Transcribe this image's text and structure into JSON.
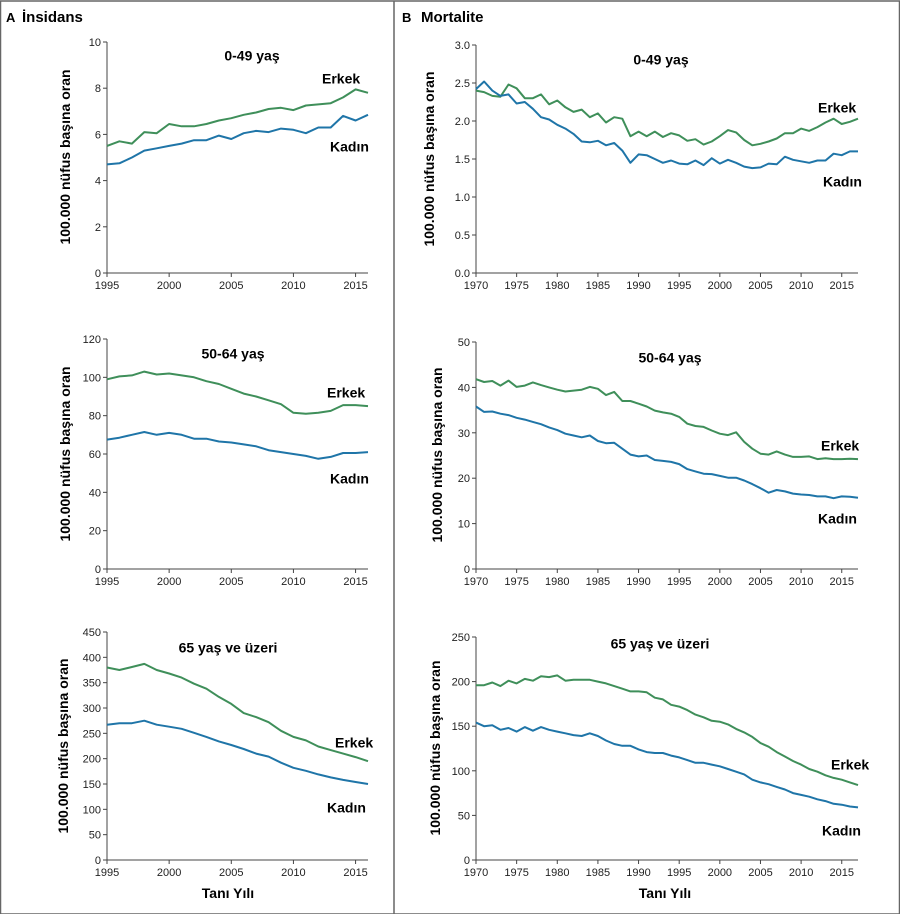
{
  "colors": {
    "erkek": "#3f8f5a",
    "kadin": "#1f75a8",
    "axis": "#444444",
    "frame": "#666666"
  },
  "panels": [
    {
      "letter": "A",
      "title": "İnsidans"
    },
    {
      "letter": "B",
      "title": "Mortalite"
    }
  ],
  "xlabel": "Tanı Yılı",
  "chart_data": [
    {
      "type": "line",
      "panel": "A",
      "title": "0-49 yaş",
      "ylabel": "100.000 nüfus başına oran",
      "xlim": [
        1995,
        2016
      ],
      "ylim": [
        0,
        10
      ],
      "xticks": [
        1995,
        2000,
        2005,
        2010,
        2015
      ],
      "yticks": [
        0,
        2,
        4,
        6,
        8,
        10
      ],
      "x": [
        1995,
        1996,
        1997,
        1998,
        1999,
        2000,
        2001,
        2002,
        2003,
        2004,
        2005,
        2006,
        2007,
        2008,
        2009,
        2010,
        2011,
        2012,
        2013,
        2014,
        2015,
        2016
      ],
      "series": [
        {
          "name": "Erkek",
          "values": [
            5.5,
            5.7,
            5.6,
            6.1,
            6.05,
            6.45,
            6.35,
            6.35,
            6.45,
            6.6,
            6.7,
            6.85,
            6.95,
            7.1,
            7.15,
            7.05,
            7.25,
            7.3,
            7.35,
            7.6,
            7.95,
            7.8
          ]
        },
        {
          "name": "Kadın",
          "values": [
            4.7,
            4.75,
            5.0,
            5.3,
            5.4,
            5.5,
            5.6,
            5.75,
            5.75,
            5.95,
            5.8,
            6.05,
            6.15,
            6.1,
            6.25,
            6.2,
            6.05,
            6.3,
            6.3,
            6.8,
            6.6,
            6.85
          ]
        }
      ]
    },
    {
      "type": "line",
      "panel": "A",
      "title": "50-64 yaş",
      "ylabel": "100.000 nüfus başına oran",
      "xlim": [
        1995,
        2016
      ],
      "ylim": [
        0,
        120
      ],
      "xticks": [
        1995,
        2000,
        2005,
        2010,
        2015
      ],
      "yticks": [
        0,
        20,
        40,
        60,
        80,
        100,
        120
      ],
      "x": [
        1995,
        1996,
        1997,
        1998,
        1999,
        2000,
        2001,
        2002,
        2003,
        2004,
        2005,
        2006,
        2007,
        2008,
        2009,
        2010,
        2011,
        2012,
        2013,
        2014,
        2015,
        2016
      ],
      "series": [
        {
          "name": "Erkek",
          "values": [
            99,
            100.5,
            101,
            103,
            101.5,
            102,
            101,
            100,
            98,
            96.5,
            94,
            91.5,
            90,
            88,
            86,
            81.5,
            81,
            81.5,
            82.5,
            85.5,
            85.5,
            85
          ]
        },
        {
          "name": "Kadın",
          "values": [
            67.5,
            68.5,
            70,
            71.5,
            70,
            71,
            70,
            68,
            68,
            66.5,
            66,
            65,
            64,
            62,
            61,
            60,
            59,
            57.5,
            58.5,
            60.5,
            60.5,
            61
          ]
        }
      ]
    },
    {
      "type": "line",
      "panel": "A",
      "title": "65 yaş ve üzeri",
      "ylabel": "100.000 nüfus başına oran",
      "xlim": [
        1995,
        2016
      ],
      "ylim": [
        0,
        450
      ],
      "xticks": [
        1995,
        2000,
        2005,
        2010,
        2015
      ],
      "yticks": [
        0,
        50,
        100,
        150,
        200,
        250,
        300,
        350,
        400,
        450
      ],
      "x": [
        1995,
        1996,
        1997,
        1998,
        1999,
        2000,
        2001,
        2002,
        2003,
        2004,
        2005,
        2006,
        2007,
        2008,
        2009,
        2010,
        2011,
        2012,
        2013,
        2014,
        2015,
        2016
      ],
      "series": [
        {
          "name": "Erkek",
          "values": [
            380,
            375,
            381,
            387,
            375,
            368,
            360,
            348,
            338,
            322,
            308,
            290,
            282,
            272,
            255,
            243,
            236,
            224,
            217,
            210,
            203,
            195
          ]
        },
        {
          "name": "Kadın",
          "values": [
            267,
            270,
            270,
            275,
            267,
            263,
            259,
            251,
            243,
            234,
            227,
            219,
            210,
            204,
            192,
            182,
            176,
            169,
            163,
            158,
            154,
            150
          ]
        }
      ]
    },
    {
      "type": "line",
      "panel": "B",
      "title": "0-49 yaş",
      "ylabel": "100.000 nüfus başına oran",
      "xlim": [
        1970,
        2017
      ],
      "ylim": [
        0,
        3.0
      ],
      "xticks": [
        1970,
        1975,
        1980,
        1985,
        1990,
        1995,
        2000,
        2005,
        2010,
        2015
      ],
      "yticks": [
        0.0,
        0.5,
        1.0,
        1.5,
        2.0,
        2.5,
        3.0
      ],
      "ytick_decimals": 1,
      "x": [
        1970,
        1971,
        1972,
        1973,
        1974,
        1975,
        1976,
        1977,
        1978,
        1979,
        1980,
        1981,
        1982,
        1983,
        1984,
        1985,
        1986,
        1987,
        1988,
        1989,
        1990,
        1991,
        1992,
        1993,
        1994,
        1995,
        1996,
        1997,
        1998,
        1999,
        2000,
        2001,
        2002,
        2003,
        2004,
        2005,
        2006,
        2007,
        2008,
        2009,
        2010,
        2011,
        2012,
        2013,
        2014,
        2015,
        2016,
        2017
      ],
      "series": [
        {
          "name": "Erkek",
          "values": [
            2.4,
            2.38,
            2.33,
            2.32,
            2.48,
            2.43,
            2.3,
            2.3,
            2.35,
            2.22,
            2.27,
            2.18,
            2.12,
            2.15,
            2.05,
            2.1,
            1.98,
            2.05,
            2.03,
            1.8,
            1.86,
            1.8,
            1.86,
            1.79,
            1.84,
            1.81,
            1.74,
            1.76,
            1.69,
            1.73,
            1.8,
            1.88,
            1.85,
            1.75,
            1.68,
            1.7,
            1.73,
            1.77,
            1.84,
            1.84,
            1.9,
            1.87,
            1.92,
            1.98,
            2.03,
            1.96,
            1.99,
            2.03
          ]
        },
        {
          "name": "Kadın",
          "values": [
            2.42,
            2.52,
            2.4,
            2.33,
            2.35,
            2.23,
            2.25,
            2.16,
            2.05,
            2.02,
            1.95,
            1.9,
            1.83,
            1.73,
            1.72,
            1.74,
            1.68,
            1.71,
            1.61,
            1.45,
            1.56,
            1.55,
            1.5,
            1.45,
            1.48,
            1.44,
            1.43,
            1.48,
            1.42,
            1.51,
            1.44,
            1.49,
            1.45,
            1.4,
            1.38,
            1.39,
            1.44,
            1.43,
            1.53,
            1.49,
            1.47,
            1.45,
            1.48,
            1.48,
            1.57,
            1.55,
            1.6,
            1.6
          ]
        }
      ]
    },
    {
      "type": "line",
      "panel": "B",
      "title": "50-64 yaş",
      "ylabel": "100.000 nüfus başına oran",
      "xlim": [
        1970,
        2017
      ],
      "ylim": [
        0,
        50
      ],
      "xticks": [
        1970,
        1975,
        1980,
        1985,
        1990,
        1995,
        2000,
        2005,
        2010,
        2015
      ],
      "yticks": [
        0,
        10,
        20,
        30,
        40,
        50
      ],
      "x": [
        1970,
        1971,
        1972,
        1973,
        1974,
        1975,
        1976,
        1977,
        1978,
        1979,
        1980,
        1981,
        1982,
        1983,
        1984,
        1985,
        1986,
        1987,
        1988,
        1989,
        1990,
        1991,
        1992,
        1993,
        1994,
        1995,
        1996,
        1997,
        1998,
        1999,
        2000,
        2001,
        2002,
        2003,
        2004,
        2005,
        2006,
        2007,
        2008,
        2009,
        2010,
        2011,
        2012,
        2013,
        2014,
        2015,
        2016,
        2017
      ],
      "series": [
        {
          "name": "Erkek",
          "values": [
            41.8,
            41.2,
            41.4,
            40.4,
            41.5,
            40.1,
            40.4,
            41.1,
            40.5,
            40.0,
            39.5,
            39.1,
            39.3,
            39.5,
            40.1,
            39.7,
            38.3,
            39.0,
            37.0,
            37.0,
            36.4,
            35.8,
            34.9,
            34.5,
            34.2,
            33.5,
            32.0,
            31.5,
            31.3,
            30.5,
            29.8,
            29.5,
            30.1,
            28.0,
            26.5,
            25.4,
            25.2,
            25.9,
            25.2,
            24.7,
            24.7,
            24.8,
            24.2,
            24.4,
            24.2,
            24.2,
            24.3,
            24.2
          ]
        },
        {
          "name": "Kadın",
          "values": [
            35.8,
            34.6,
            34.7,
            34.2,
            33.9,
            33.3,
            32.9,
            32.4,
            31.9,
            31.2,
            30.6,
            29.8,
            29.4,
            29.0,
            29.4,
            28.2,
            27.7,
            27.8,
            26.5,
            25.2,
            24.8,
            25.0,
            24.0,
            23.8,
            23.6,
            23.1,
            22.0,
            21.5,
            21.0,
            20.9,
            20.5,
            20.1,
            20.1,
            19.5,
            18.7,
            17.8,
            16.8,
            17.4,
            17.1,
            16.6,
            16.4,
            16.3,
            16.0,
            16.0,
            15.6,
            16.0,
            15.9,
            15.7
          ]
        }
      ]
    },
    {
      "type": "line",
      "panel": "B",
      "title": "65 yaş ve üzeri",
      "ylabel": "100.000 nüfus başına oran",
      "xlim": [
        1970,
        2017
      ],
      "ylim": [
        0,
        250
      ],
      "xticks": [
        1970,
        1975,
        1980,
        1985,
        1990,
        1995,
        2000,
        2005,
        2010,
        2015
      ],
      "yticks": [
        0,
        50,
        100,
        150,
        200,
        250
      ],
      "x": [
        1970,
        1971,
        1972,
        1973,
        1974,
        1975,
        1976,
        1977,
        1978,
        1979,
        1980,
        1981,
        1982,
        1983,
        1984,
        1985,
        1986,
        1987,
        1988,
        1989,
        1990,
        1991,
        1992,
        1993,
        1994,
        1995,
        1996,
        1997,
        1998,
        1999,
        2000,
        2001,
        2002,
        2003,
        2004,
        2005,
        2006,
        2007,
        2008,
        2009,
        2010,
        2011,
        2012,
        2013,
        2014,
        2015,
        2016,
        2017
      ],
      "series": [
        {
          "name": "Erkek",
          "values": [
            196,
            196,
            199,
            195,
            201,
            198,
            203,
            201,
            206,
            205,
            207,
            201,
            202,
            202,
            202,
            200,
            198,
            195,
            192,
            189,
            189,
            188,
            182,
            180,
            174,
            172,
            168,
            163,
            160,
            156,
            155,
            152,
            147,
            143,
            138,
            131,
            127,
            121,
            116,
            111,
            107,
            102,
            99,
            95,
            92,
            90,
            87,
            84
          ]
        },
        {
          "name": "Kadın",
          "values": [
            154,
            150,
            151,
            146,
            148,
            144,
            149,
            145,
            149,
            146,
            144,
            142,
            140,
            139,
            142,
            139,
            134,
            130,
            128,
            128,
            124,
            121,
            120,
            120,
            117,
            115,
            112,
            109,
            109,
            107,
            105,
            102,
            99,
            96,
            90,
            87,
            85,
            82,
            79,
            75,
            73,
            71,
            68,
            66,
            63,
            62,
            60,
            59
          ]
        }
      ]
    }
  ]
}
